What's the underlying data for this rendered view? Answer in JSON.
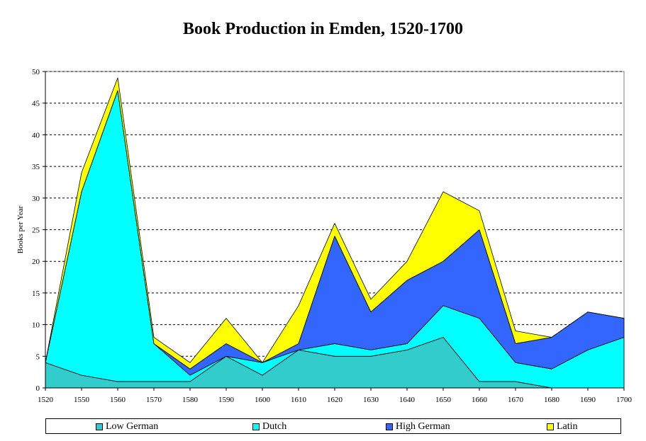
{
  "chart_data": {
    "type": "area",
    "stacked": true,
    "title": "Book Production in Emden, 1520-1700",
    "xlabel": "",
    "ylabel": "Books per Year",
    "x": [
      1520,
      1550,
      1560,
      1570,
      1580,
      1590,
      1600,
      1610,
      1620,
      1630,
      1640,
      1650,
      1660,
      1670,
      1680,
      1690,
      1700
    ],
    "ylim": [
      0,
      50
    ],
    "yticks": [
      0,
      5,
      10,
      15,
      20,
      25,
      30,
      35,
      40,
      45,
      50
    ],
    "grid": "horizontal-dashed",
    "legend_position": "bottom",
    "series": [
      {
        "name": "Low German",
        "color": "#33CCCC",
        "values": [
          4,
          2,
          1,
          1,
          1,
          5,
          2,
          6,
          5,
          5,
          6,
          8,
          1,
          1,
          0,
          0,
          0
        ]
      },
      {
        "name": "Dutch",
        "color": "#00FFFF",
        "values": [
          0,
          29,
          46,
          6,
          1,
          0,
          2,
          0,
          2,
          1,
          1,
          5,
          10,
          3,
          3,
          6,
          8
        ]
      },
      {
        "name": "High German",
        "color": "#3366FF",
        "values": [
          0,
          0,
          0,
          0,
          1,
          2,
          0,
          1,
          17,
          6,
          10,
          7,
          14,
          3,
          5,
          6,
          3
        ]
      },
      {
        "name": "Latin",
        "color": "#FFFF00",
        "values": [
          0,
          3,
          2,
          1,
          1,
          4,
          0,
          6,
          2,
          2,
          3,
          11,
          3,
          2,
          0,
          0,
          0
        ]
      }
    ]
  }
}
